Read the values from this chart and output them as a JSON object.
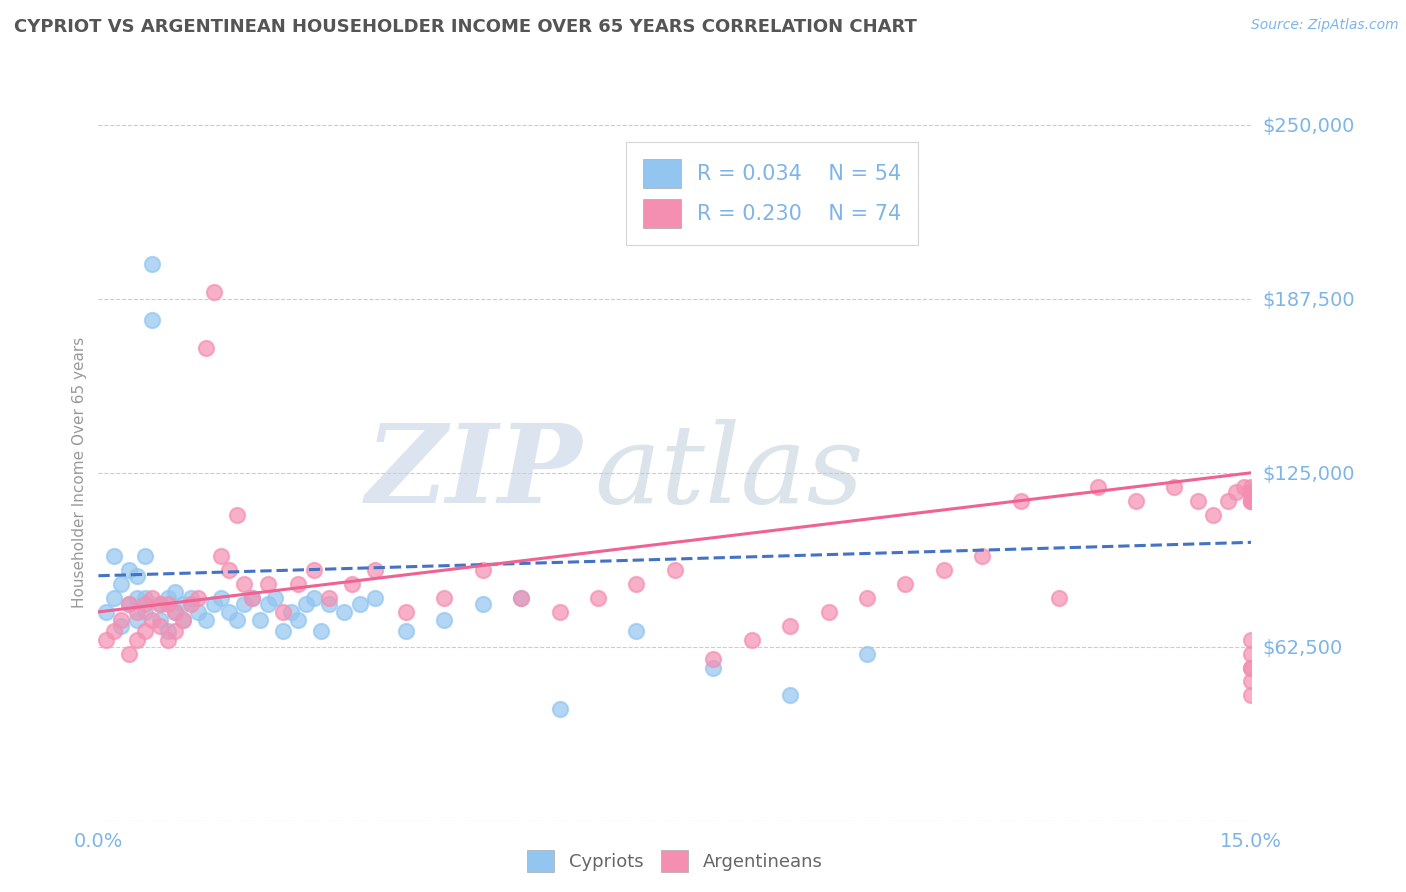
{
  "title": "CYPRIOT VS ARGENTINEAN HOUSEHOLDER INCOME OVER 65 YEARS CORRELATION CHART",
  "source_text": "Source: ZipAtlas.com",
  "ylabel": "Householder Income Over 65 years",
  "xlim": [
    0.0,
    0.15
  ],
  "ylim": [
    0,
    250000
  ],
  "yticks": [
    0,
    62500,
    125000,
    187500,
    250000
  ],
  "ytick_labels": [
    "",
    "$62,500",
    "$125,000",
    "$187,500",
    "$250,000"
  ],
  "xticks": [
    0.0,
    0.15
  ],
  "xtick_labels": [
    "0.0%",
    "15.0%"
  ],
  "cypriot_color": "#92C5F0",
  "argentinean_color": "#F48FB1",
  "cypriot_line_color": "#4472C4",
  "argentinean_line_color": "#F06292",
  "R_cypriot": 0.034,
  "N_cypriot": 54,
  "R_argentinean": 0.23,
  "N_argentinean": 74,
  "watermark_zip": "ZIP",
  "watermark_atlas": "atlas",
  "watermark_color_zip": "#C8D8E8",
  "watermark_color_atlas": "#C0C8D8",
  "title_color": "#555555",
  "axis_color": "#7EB5E8",
  "background_color": "#FFFFFF",
  "grid_color": "#CCCCCC",
  "cypriot_x": [
    0.001,
    0.002,
    0.002,
    0.003,
    0.003,
    0.004,
    0.004,
    0.005,
    0.005,
    0.005,
    0.006,
    0.006,
    0.006,
    0.007,
    0.007,
    0.008,
    0.008,
    0.009,
    0.009,
    0.01,
    0.01,
    0.011,
    0.011,
    0.012,
    0.013,
    0.014,
    0.015,
    0.016,
    0.017,
    0.018,
    0.019,
    0.02,
    0.021,
    0.022,
    0.023,
    0.024,
    0.025,
    0.026,
    0.027,
    0.028,
    0.029,
    0.03,
    0.032,
    0.034,
    0.036,
    0.04,
    0.045,
    0.05,
    0.055,
    0.06,
    0.07,
    0.08,
    0.09,
    0.1
  ],
  "cypriot_y": [
    75000,
    80000,
    95000,
    70000,
    85000,
    78000,
    90000,
    72000,
    80000,
    88000,
    75000,
    80000,
    95000,
    200000,
    180000,
    72000,
    78000,
    68000,
    80000,
    75000,
    82000,
    72000,
    78000,
    80000,
    75000,
    72000,
    78000,
    80000,
    75000,
    72000,
    78000,
    80000,
    72000,
    78000,
    80000,
    68000,
    75000,
    72000,
    78000,
    80000,
    68000,
    78000,
    75000,
    78000,
    80000,
    68000,
    72000,
    78000,
    80000,
    40000,
    68000,
    55000,
    45000,
    60000
  ],
  "argentinean_x": [
    0.001,
    0.002,
    0.003,
    0.004,
    0.004,
    0.005,
    0.005,
    0.006,
    0.006,
    0.007,
    0.007,
    0.008,
    0.008,
    0.009,
    0.009,
    0.01,
    0.01,
    0.011,
    0.012,
    0.013,
    0.014,
    0.015,
    0.016,
    0.017,
    0.018,
    0.019,
    0.02,
    0.022,
    0.024,
    0.026,
    0.028,
    0.03,
    0.033,
    0.036,
    0.04,
    0.045,
    0.05,
    0.055,
    0.06,
    0.065,
    0.07,
    0.075,
    0.08,
    0.085,
    0.09,
    0.095,
    0.1,
    0.105,
    0.11,
    0.115,
    0.12,
    0.125,
    0.13,
    0.135,
    0.14,
    0.143,
    0.145,
    0.147,
    0.148,
    0.149,
    0.15,
    0.15,
    0.15,
    0.15,
    0.15,
    0.15,
    0.15,
    0.15,
    0.15,
    0.15,
    0.15,
    0.15,
    0.15,
    0.15
  ],
  "argentinean_y": [
    65000,
    68000,
    72000,
    60000,
    78000,
    65000,
    75000,
    68000,
    78000,
    72000,
    80000,
    70000,
    78000,
    65000,
    78000,
    68000,
    75000,
    72000,
    78000,
    80000,
    170000,
    190000,
    95000,
    90000,
    110000,
    85000,
    80000,
    85000,
    75000,
    85000,
    90000,
    80000,
    85000,
    90000,
    75000,
    80000,
    90000,
    80000,
    75000,
    80000,
    85000,
    90000,
    58000,
    65000,
    70000,
    75000,
    80000,
    85000,
    90000,
    95000,
    115000,
    80000,
    120000,
    115000,
    120000,
    115000,
    110000,
    115000,
    118000,
    120000,
    55000,
    65000,
    115000,
    118000,
    45000,
    55000,
    115000,
    120000,
    118000,
    115000,
    50000,
    60000,
    117000,
    118000
  ]
}
